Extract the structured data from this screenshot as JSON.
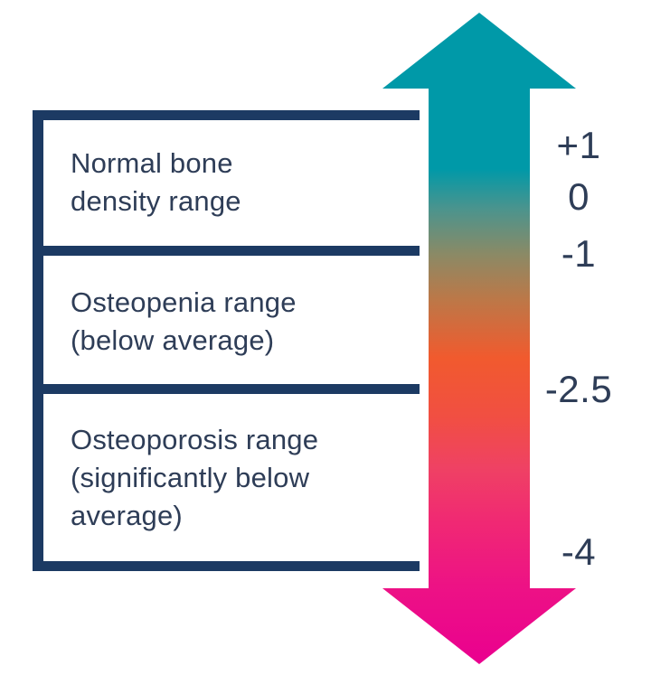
{
  "diagram": {
    "description": "Bone density T-score ranges diagram",
    "boxes": [
      {
        "name": "normal",
        "label": "Normal bone density range",
        "lines": [
          "Normal bone",
          "density range"
        ]
      },
      {
        "name": "osteopenia",
        "label": "Osteopenia range (below average)",
        "lines": [
          "Osteopenia range",
          "(below average)"
        ]
      },
      {
        "name": "osteoporosis",
        "label": "Osteoporosis range (significantly below average)",
        "lines": [
          "Osteoporosis range",
          "(significantly below",
          "average)"
        ]
      }
    ],
    "scale": {
      "labels": [
        {
          "value": "+1"
        },
        {
          "value": "0"
        },
        {
          "value": "-1"
        },
        {
          "value": "-2.5"
        },
        {
          "value": "-4"
        }
      ]
    }
  },
  "colors": {
    "border_navy": "#1c3a63",
    "text_navy": "#2e3d57",
    "arrow_teal": "#0099a8",
    "arrow_teal_gray": "#4a948e",
    "arrow_olive": "#8a8a66",
    "arrow_copper": "#bc7848",
    "arrow_orange": "#f15a2e",
    "arrow_orange_red": "#f14f42",
    "arrow_red_pink": "#ef4164",
    "arrow_pink": "#f02973",
    "arrow_deep_pink": "#ed1285",
    "arrow_magenta": "#ea008f",
    "bg_white": "#ffffff"
  }
}
